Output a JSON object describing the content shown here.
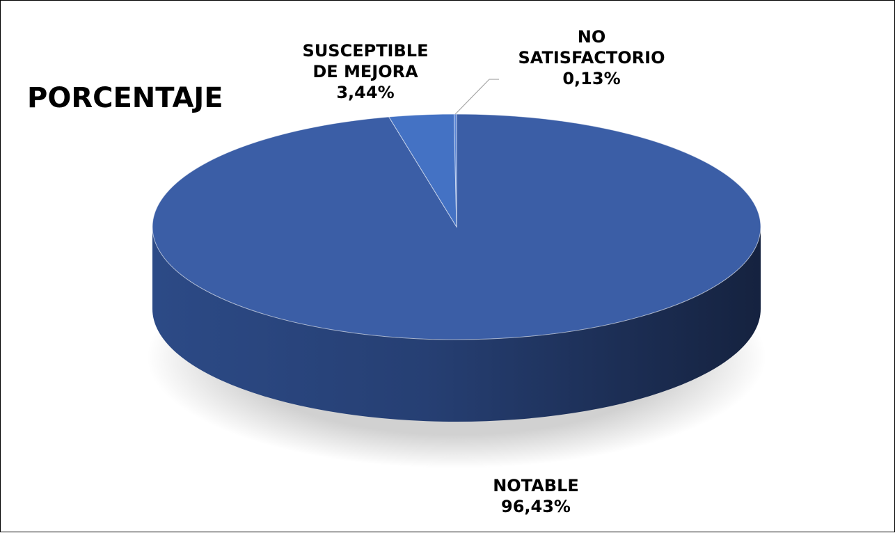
{
  "chart_data": {
    "type": "pie",
    "title": "PORCENTAJE",
    "three_d": true,
    "start_angle_deg": 0,
    "direction": "clockwise",
    "slices": [
      {
        "name_lines": [
          "NOTABLE"
        ],
        "value": 96.43,
        "value_label": "96,43%",
        "color": "#3B5EA6"
      },
      {
        "name_lines": [
          "SUSCEPTIBLE",
          "DE MEJORA"
        ],
        "value": 3.44,
        "value_label": "3,44%",
        "color": "#4472C4"
      },
      {
        "name_lines": [
          "NO",
          "SATISFACTORIO"
        ],
        "value": 0.13,
        "value_label": "0,13%",
        "color": "#5B86D6"
      }
    ]
  }
}
